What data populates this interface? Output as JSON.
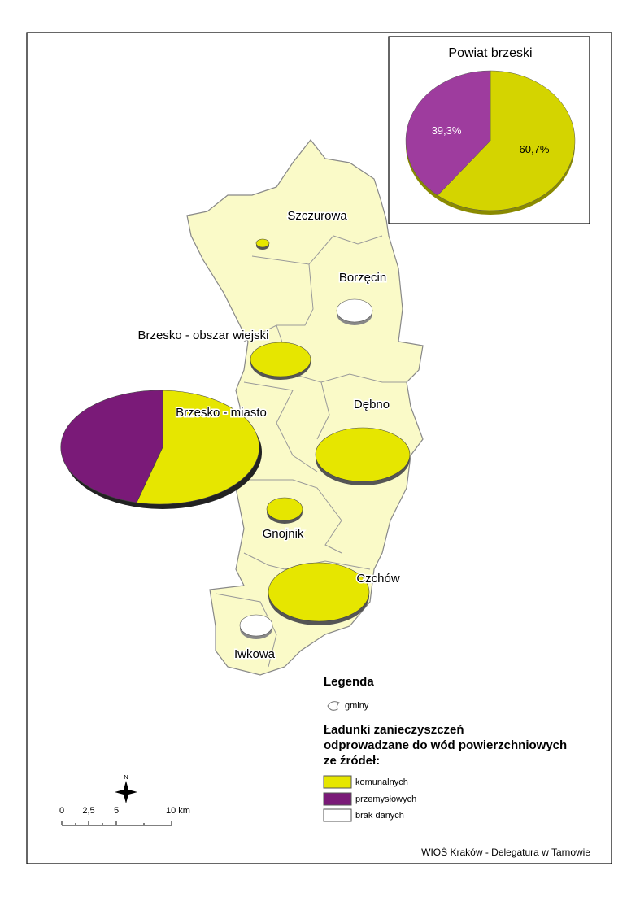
{
  "inset": {
    "title": "Powiat brzeski",
    "values": [
      60.7,
      39.3
    ],
    "value_labels": [
      "60,7%",
      "39,3%"
    ],
    "colors": [
      "#d4d400",
      "#9e3c9e"
    ]
  },
  "gminy": [
    "Szczurowa",
    "Borzęcin",
    "Brzesko - obszar wiejski",
    "Brzesko - miasto",
    "Dębno",
    "Gnojnik",
    "Czchów",
    "Iwkowa"
  ],
  "legend": {
    "title": "Legenda",
    "boundary": "gminy",
    "subtitle": [
      "Ładunki zanieczyszczeń",
      "odprowadzane do wód powierzchniowych",
      "ze źródeł:"
    ],
    "items": [
      "komunalnych",
      "przemysłowych",
      "brak danych"
    ]
  },
  "scale": {
    "north": "N",
    "labels": [
      "0",
      "2,5",
      "5",
      "10 km"
    ]
  },
  "footer": "WIOŚ Kraków - Delegatura w Tarnowie"
}
